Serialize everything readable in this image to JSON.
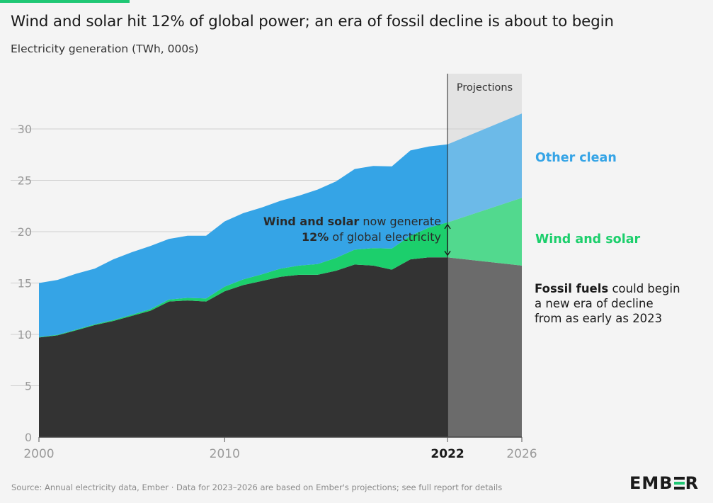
{
  "header": {
    "title": "Wind and solar hit 12% of global power; an era of fossil decline is about to begin",
    "subtitle": "Electricity generation (TWh, 000s)"
  },
  "chart_data": {
    "type": "area",
    "stacked": true,
    "title": "Wind and solar hit 12% of global power; an era of fossil decline is about to begin",
    "subtitle": "Electricity generation (TWh, 000s)",
    "x": [
      2000,
      2001,
      2002,
      2003,
      2004,
      2005,
      2006,
      2007,
      2008,
      2009,
      2010,
      2011,
      2012,
      2013,
      2014,
      2015,
      2016,
      2017,
      2018,
      2019,
      2020,
      2021,
      2022,
      2023,
      2024,
      2025,
      2026
    ],
    "series": [
      {
        "name": "Fossil fuels",
        "color": "#333333",
        "projection_color": "#6b6b6b",
        "values": [
          9.7,
          9.9,
          10.4,
          10.9,
          11.3,
          11.8,
          12.3,
          13.2,
          13.3,
          13.2,
          14.2,
          14.8,
          15.2,
          15.6,
          15.8,
          15.8,
          16.2,
          16.8,
          16.7,
          16.3,
          17.3,
          17.5,
          17.5,
          17.3,
          17.1,
          16.9,
          16.7
        ]
      },
      {
        "name": "Wind and solar",
        "color": "#1ccf6c",
        "projection_color": "#52d98e",
        "values": [
          0.05,
          0.06,
          0.07,
          0.08,
          0.1,
          0.12,
          0.15,
          0.2,
          0.25,
          0.3,
          0.45,
          0.55,
          0.65,
          0.8,
          0.9,
          1.05,
          1.25,
          1.45,
          1.7,
          2.05,
          2.3,
          2.9,
          3.4,
          4.3,
          5.0,
          5.8,
          6.6
        ]
      },
      {
        "name": "Other clean",
        "color": "#35a4e6",
        "projection_color": "#6cbae8",
        "values": [
          5.25,
          5.34,
          5.43,
          5.42,
          5.9,
          6.08,
          6.15,
          5.9,
          6.05,
          6.1,
          6.35,
          6.45,
          6.5,
          6.6,
          6.8,
          7.25,
          7.45,
          7.85,
          8.0,
          8.0,
          8.3,
          7.9,
          7.6,
          7.9,
          7.9,
          7.9,
          8.2
        ]
      }
    ],
    "projection_start": 2022,
    "projection_label": "Projections",
    "ylim": [
      0,
      32
    ],
    "yticks": [
      0,
      5,
      10,
      15,
      20,
      25,
      30
    ],
    "xlim": [
      2000,
      2026
    ],
    "xticks": [
      {
        "value": 2000,
        "label": "2000",
        "bold": false
      },
      {
        "value": 2010,
        "label": "2010",
        "bold": false
      },
      {
        "value": 2022,
        "label": "2022",
        "bold": true
      },
      {
        "value": 2026,
        "label": "2026",
        "bold": false
      }
    ],
    "grid": true,
    "legend": "inline-right"
  },
  "labels": {
    "other_clean": "Other clean",
    "wind_solar": "Wind and solar",
    "other_clean_color": "#35a4e6",
    "wind_solar_color": "#1ccf6c"
  },
  "annotations": {
    "mid_bold_1": "Wind and solar",
    "mid_text_1": " now generate",
    "mid_bold_2": "12%",
    "mid_text_2": " of global electricity",
    "fossil_bold": "Fossil fuels",
    "fossil_text_1": " could begin",
    "fossil_text_2": "a new era of decline",
    "fossil_text_3": "from as early as 2023"
  },
  "footer": {
    "source": "Source: Annual electricity data, Ember · Data for 2023–2026 are based on Ember's projections; see full report for details",
    "logo_left": "EMB",
    "logo_right": "R"
  }
}
